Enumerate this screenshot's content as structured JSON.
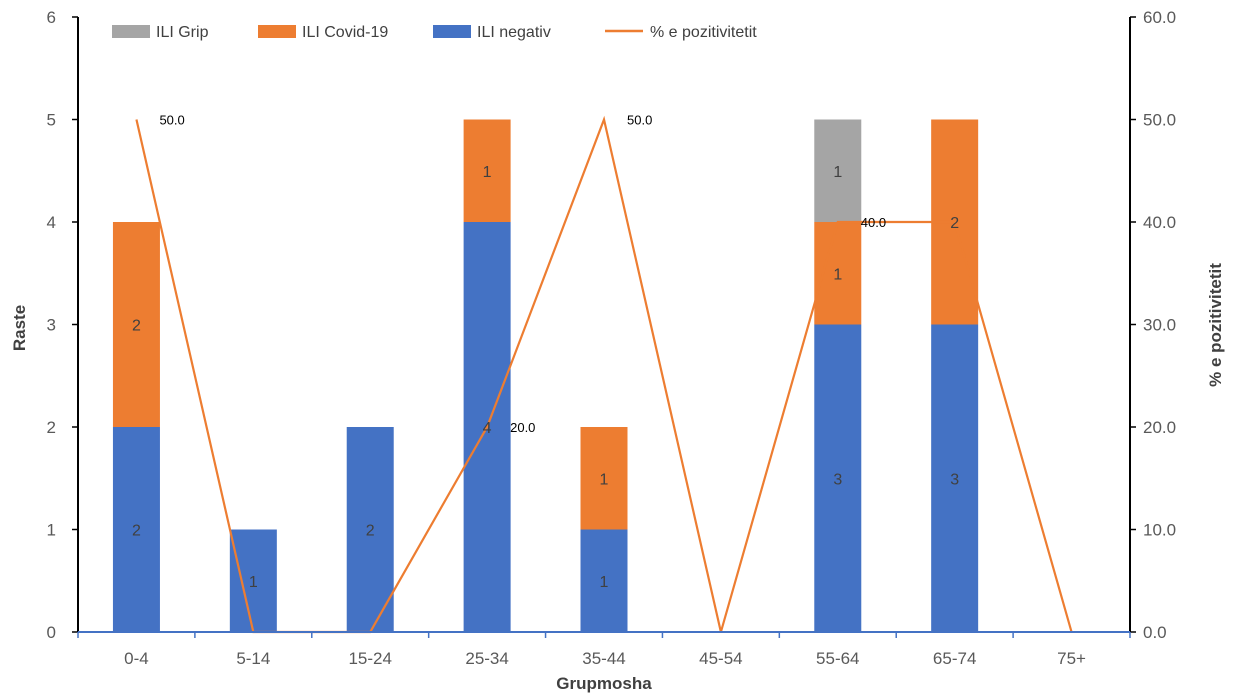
{
  "chart_data": {
    "type": "bar",
    "stacked": true,
    "categories": [
      "0-4",
      "5-14",
      "15-24",
      "25-34",
      "35-44",
      "45-54",
      "55-64",
      "65-74",
      "75+"
    ],
    "series": [
      {
        "name": "ILI negativ",
        "color": "#4472C4",
        "axis": "left",
        "values": [
          2,
          1,
          2,
          4,
          1,
          0,
          3,
          3,
          0
        ]
      },
      {
        "name": "ILI Covid-19",
        "color": "#ED7D31",
        "axis": "left",
        "values": [
          2,
          0,
          0,
          1,
          1,
          0,
          1,
          2,
          0
        ]
      },
      {
        "name": "ILI Grip",
        "color": "#A5A5A5",
        "axis": "left",
        "values": [
          0,
          0,
          0,
          0,
          0,
          0,
          1,
          0,
          0
        ]
      }
    ],
    "line_series": {
      "name": "% e pozitivitetit",
      "color": "#ED7D31",
      "axis": "right",
      "values": [
        50.0,
        0.0,
        0.0,
        20.0,
        50.0,
        0.0,
        40.0,
        40.0,
        0.0
      ],
      "labels": [
        "50.0",
        "",
        "",
        "20.0",
        "50.0",
        "",
        "40.0",
        "",
        ""
      ]
    },
    "legend_order": [
      "ILI Grip",
      "ILI Covid-19",
      "ILI negativ",
      "% e pozitivitetit"
    ],
    "legend_position": "top",
    "xlabel": "Grupmosha",
    "ylabel": "Raste",
    "y2label": "% e pozitivitetit",
    "ylim": [
      0,
      6
    ],
    "y2lim": [
      0,
      60
    ],
    "yticks": [
      "0",
      "1",
      "2",
      "3",
      "4",
      "5",
      "6"
    ],
    "y2ticks": [
      "0.0",
      "10.0",
      "20.0",
      "30.0",
      "40.0",
      "50.0",
      "60.0"
    ],
    "grid": false
  }
}
